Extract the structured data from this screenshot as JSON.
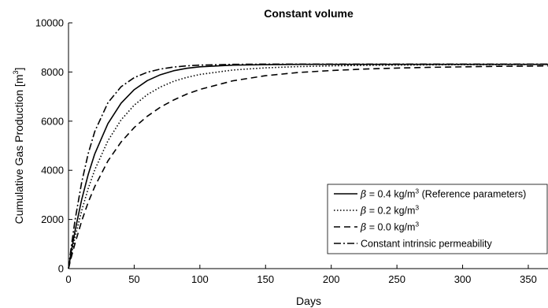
{
  "chart_data": {
    "type": "line",
    "title": "Constant volume",
    "xlabel": "Days",
    "ylabel": "Cumulative Gas Production [m",
    "ylabel_sup": "3",
    "ylabel_end": "]",
    "xlim": [
      0,
      365
    ],
    "ylim": [
      0,
      10000
    ],
    "xticks": [
      0,
      50,
      100,
      150,
      200,
      250,
      300,
      350
    ],
    "yticks": [
      0,
      2000,
      4000,
      6000,
      8000,
      10000
    ],
    "grid": false,
    "legend_position": "bottom-right",
    "x": [
      0,
      2,
      5,
      10,
      15,
      20,
      30,
      40,
      50,
      60,
      70,
      80,
      90,
      100,
      125,
      150,
      175,
      200,
      225,
      250,
      275,
      300,
      325,
      350,
      365
    ],
    "series": [
      {
        "name_symbol": "β",
        "name": " = 0.4 kg/m",
        "name_sup": "3",
        "name_tail": " (Reference parameters)",
        "style": "solid",
        "values": [
          0,
          660,
          1540,
          2800,
          3830,
          4670,
          5900,
          6730,
          7280,
          7650,
          7890,
          8050,
          8150,
          8210,
          8280,
          8300,
          8310,
          8310,
          8310,
          8310,
          8310,
          8310,
          8310,
          8310,
          8310
        ]
      },
      {
        "name_symbol": "β",
        "name": " = 0.2 kg/m",
        "name_sup": "3",
        "name_tail": "",
        "style": "dotted",
        "values": [
          0,
          540,
          1280,
          2350,
          3260,
          4020,
          5200,
          6050,
          6650,
          7080,
          7390,
          7620,
          7780,
          7900,
          8080,
          8170,
          8220,
          8250,
          8270,
          8280,
          8290,
          8300,
          8300,
          8305,
          8305
        ]
      },
      {
        "name_symbol": "β",
        "name": " = 0.0 kg/m",
        "name_sup": "3",
        "name_tail": "",
        "style": "dashed",
        "values": [
          0,
          440,
          1030,
          1930,
          2700,
          3340,
          4380,
          5150,
          5740,
          6200,
          6570,
          6860,
          7100,
          7290,
          7640,
          7850,
          7980,
          8060,
          8120,
          8160,
          8190,
          8210,
          8230,
          8240,
          8250
        ]
      },
      {
        "name_symbol": "",
        "name": "Constant intrinsic permeability",
        "name_sup": "",
        "name_tail": "",
        "style": "dashdot",
        "values": [
          0,
          850,
          1980,
          3500,
          4680,
          5580,
          6750,
          7400,
          7770,
          7990,
          8120,
          8200,
          8250,
          8280,
          8310,
          8320,
          8320,
          8320,
          8320,
          8320,
          8320,
          8320,
          8320,
          8320,
          8320
        ]
      }
    ]
  }
}
